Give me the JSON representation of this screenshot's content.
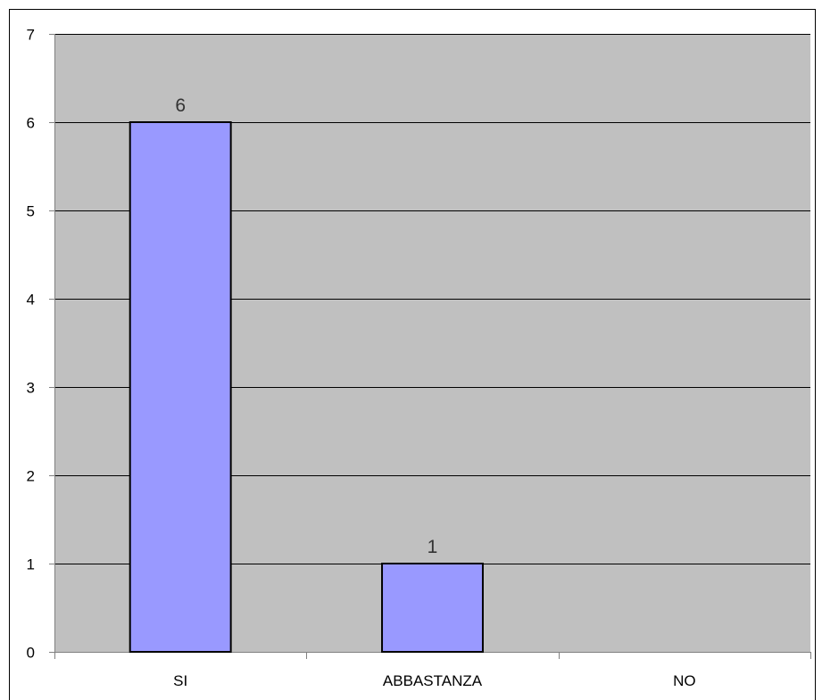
{
  "chart_data": {
    "type": "bar",
    "categories": [
      "SI",
      "ABBASTANZA",
      "NO"
    ],
    "values": [
      6,
      1,
      0
    ],
    "data_labels": [
      "6",
      "1",
      ""
    ],
    "title": "",
    "xlabel": "",
    "ylabel": "",
    "ylim": [
      0,
      7
    ],
    "yticks": [
      0,
      1,
      2,
      3,
      4,
      5,
      6,
      7
    ],
    "ytick_labels": [
      "0",
      "1",
      "2",
      "3",
      "4",
      "5",
      "6",
      "7"
    ],
    "grid": true,
    "legend": "none",
    "colors": {
      "bar_fill": "#9999ff",
      "bar_stroke": "#000000",
      "plot_background": "#c0c0c0",
      "gridline": "#000000",
      "axis": "#808080",
      "frame": "#000000",
      "data_label": "#333333"
    }
  }
}
